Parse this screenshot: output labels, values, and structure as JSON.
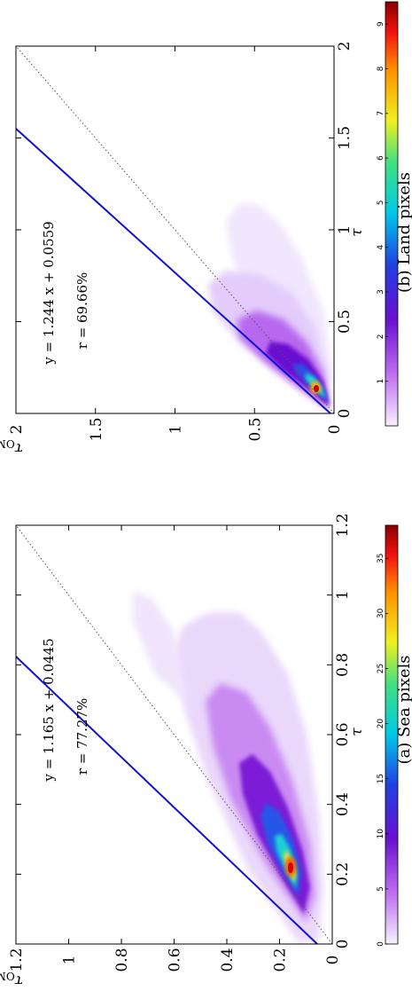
{
  "chart_data": [
    {
      "type": "heatmap",
      "caption": "(a) Sea pixels",
      "xlabel": "τ",
      "ylabel": "τ",
      "ylabel_sub": "OMI",
      "xlim": [
        0,
        1.2
      ],
      "ylim": [
        0,
        1.2
      ],
      "x_ticks": [
        "0",
        "0.2",
        "0.4",
        "0.6",
        "0.8",
        "1",
        "1.2"
      ],
      "y_ticks": [
        "0",
        "0.2",
        "0.4",
        "0.6",
        "0.8",
        "1",
        "1.2"
      ],
      "fit": {
        "slope": 1.165,
        "intercept": 0.0445,
        "label": "y = 1.165 x + 0.0445"
      },
      "r_label": "r = 77.27%",
      "reference_line": "y = x (dotted)",
      "colorbar": {
        "min": 0,
        "max": 38,
        "ticks": [
          "0",
          "5",
          "10",
          "15",
          "20",
          "25",
          "30",
          "35"
        ],
        "palette": "white-purple-blue-cyan-green-yellow-orange-red"
      },
      "density_peak": {
        "x": 0.11,
        "y": 0.17
      }
    },
    {
      "type": "heatmap",
      "caption": "(b) Land pixels",
      "xlabel": "τ",
      "ylabel": "τ",
      "ylabel_sub": "OMI",
      "xlim": [
        0,
        2
      ],
      "ylim": [
        0,
        2
      ],
      "x_ticks": [
        "0",
        "0.5",
        "1",
        "1.5",
        "2"
      ],
      "y_ticks": [
        "0",
        "0.5",
        "1",
        "1.5",
        "2"
      ],
      "fit": {
        "slope": 1.244,
        "intercept": 0.0559,
        "label": "y = 1.244 x + 0.0559"
      },
      "r_label": "r = 69.66%",
      "reference_line": "y = x (dotted)",
      "colorbar": {
        "min": 0,
        "max": 9.5,
        "ticks": [
          "1",
          "2",
          "3",
          "4",
          "5",
          "6",
          "7",
          "8",
          "9"
        ],
        "palette": "white-purple-blue-cyan-green-yellow-orange-red"
      },
      "density_peak": {
        "x": 0.1,
        "y": 0.2
      }
    }
  ]
}
